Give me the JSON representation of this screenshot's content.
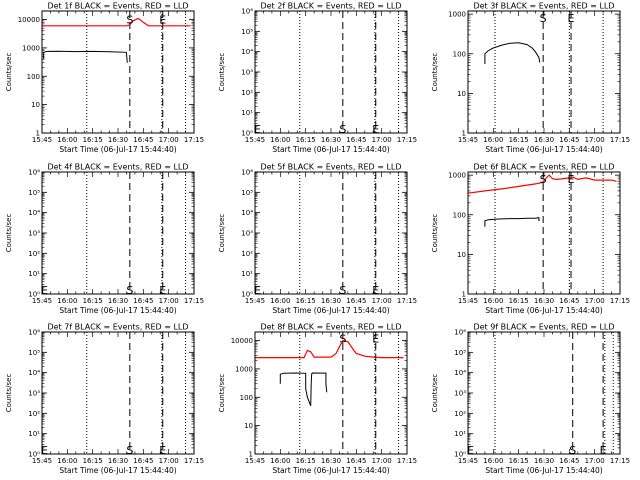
{
  "chart_data": [
    {
      "type": "line",
      "title": "Det 1f BLACK = Events, RED = LLD",
      "xlabel": "Start Time (06-Jul-17 15:44:40)",
      "ylabel": "Counts/sec",
      "xtick_labels": [
        "15:45",
        "16:00",
        "16:15",
        "16:30",
        "16:45",
        "17:00",
        "17:15"
      ],
      "xlim": [
        0,
        90
      ],
      "ylim": [
        1,
        20000
      ],
      "ytick_labels": [
        "1",
        "10",
        "100",
        "1000",
        "10000"
      ],
      "ytick_values": [
        1,
        10,
        100,
        1000,
        10000
      ],
      "dotted_lines_x": [
        26.5,
        71,
        85
      ],
      "dashed_lines_x": [
        52,
        71.5
      ],
      "markers": [
        {
          "label": "S",
          "x": 52,
          "y": 10000
        },
        {
          "label": "E",
          "x": 71.5,
          "y": 10000
        }
      ],
      "series": [
        {
          "name": "Events",
          "color": "#000000",
          "x": [
            1,
            1,
            3,
            10,
            20,
            30,
            40,
            50,
            50.5
          ],
          "y": [
            400,
            700,
            750,
            760,
            740,
            750,
            730,
            700,
            300
          ]
        },
        {
          "name": "LLD",
          "color": "#ff0000",
          "x": [
            0,
            10,
            20,
            30,
            40,
            50,
            52,
            54,
            57,
            60,
            63,
            66,
            70,
            75,
            80,
            88
          ],
          "y": [
            6000,
            6000,
            6000,
            6000,
            6000,
            6000,
            6500,
            9000,
            11000,
            8000,
            6000,
            6000,
            6000,
            6000,
            6000,
            6000
          ]
        }
      ]
    },
    {
      "type": "line",
      "title": "Det 2f BLACK = Events, RED = LLD",
      "xlabel": "Start Time (06-Jul-17 15:44:40)",
      "ylabel": "Counts/sec",
      "xtick_labels": [
        "15:45",
        "16:00",
        "16:15",
        "16:30",
        "16:45",
        "17:00",
        "17:15"
      ],
      "xlim": [
        0,
        90
      ],
      "ylim": [
        1,
        1000000
      ],
      "ytick_labels": [
        "10⁰",
        "10¹",
        "10²",
        "10³",
        "10⁴",
        "10⁵",
        "10⁶"
      ],
      "ytick_values": [
        1,
        10,
        100,
        1000,
        10000,
        100000,
        1000000
      ],
      "dotted_lines_x": [
        26.5,
        71,
        85
      ],
      "dashed_lines_x": [
        52,
        71.5
      ],
      "markers": [
        {
          "label": "E",
          "x": 1.5,
          "y": 1.6
        },
        {
          "label": "S",
          "x": 52,
          "y": 1.6
        },
        {
          "label": "E",
          "x": 71.5,
          "y": 1.6
        }
      ],
      "series": []
    },
    {
      "type": "line",
      "title": "Det 3f BLACK = Events, RED = LLD",
      "xlabel": "Start Time (06-Jul-17 15:44:40)",
      "ylabel": "Counts/sec",
      "xtick_labels": [
        "15:45",
        "16:00",
        "16:15",
        "16:30",
        "16:45",
        "17:00",
        "17:15"
      ],
      "xlim": [
        0,
        90
      ],
      "ylim": [
        1,
        1200
      ],
      "ytick_labels": [
        "1",
        "10",
        "100",
        "1000"
      ],
      "ytick_values": [
        1,
        10,
        100,
        1000
      ],
      "dotted_lines_x": [
        16,
        60,
        80
      ],
      "dashed_lines_x": [
        44.5,
        61
      ],
      "markers": [
        {
          "label": "S",
          "x": 44.5,
          "y": 800
        },
        {
          "label": "E",
          "x": 61,
          "y": 800
        }
      ],
      "series": [
        {
          "name": "Events",
          "color": "#000000",
          "x": [
            10,
            10,
            12,
            15,
            20,
            25,
            30,
            35,
            38,
            40,
            42,
            42.5
          ],
          "y": [
            55,
            100,
            120,
            140,
            165,
            185,
            190,
            170,
            140,
            110,
            80,
            60
          ]
        }
      ]
    },
    {
      "type": "line",
      "title": "Det 4f BLACK = Events, RED = LLD",
      "xlabel": "Start Time (06-Jul-17 15:44:40)",
      "ylabel": "Counts/sec",
      "xtick_labels": [
        "15:45",
        "16:00",
        "16:15",
        "16:30",
        "16:45",
        "17:00",
        "17:15"
      ],
      "xlim": [
        0,
        90
      ],
      "ylim": [
        1,
        1000000
      ],
      "ytick_labels": [
        "10⁰",
        "10¹",
        "10²",
        "10³",
        "10⁴",
        "10⁵",
        "10⁶"
      ],
      "ytick_values": [
        1,
        10,
        100,
        1000,
        10000,
        100000,
        1000000
      ],
      "dotted_lines_x": [
        26.5,
        71,
        85
      ],
      "dashed_lines_x": [
        52,
        71.5
      ],
      "markers": [
        {
          "label": "E",
          "x": 1.5,
          "y": 1.6
        },
        {
          "label": "S",
          "x": 52,
          "y": 1.6
        },
        {
          "label": "E",
          "x": 71.5,
          "y": 1.6
        }
      ],
      "series": []
    },
    {
      "type": "line",
      "title": "Det 5f BLACK = Events, RED = LLD",
      "xlabel": "Start Time (06-Jul-17 15:44:40)",
      "ylabel": "Counts/sec",
      "xtick_labels": [
        "15:45",
        "16:00",
        "16:15",
        "16:30",
        "16:45",
        "17:00",
        "17:15"
      ],
      "xlim": [
        0,
        90
      ],
      "ylim": [
        1,
        1000000
      ],
      "ytick_labels": [
        "10⁰",
        "10¹",
        "10²",
        "10³",
        "10⁴",
        "10⁵",
        "10⁶"
      ],
      "ytick_values": [
        1,
        10,
        100,
        1000,
        10000,
        100000,
        1000000
      ],
      "dotted_lines_x": [
        26.5,
        71,
        85
      ],
      "dashed_lines_x": [
        52,
        71.5
      ],
      "markers": [
        {
          "label": "E",
          "x": 1.5,
          "y": 1.6
        },
        {
          "label": "S",
          "x": 52,
          "y": 1.6
        },
        {
          "label": "E",
          "x": 71.5,
          "y": 1.6
        }
      ],
      "series": []
    },
    {
      "type": "line",
      "title": "Det 6f BLACK = Events, RED = LLD",
      "xlabel": "Start Time (06-Jul-17 15:44:40)",
      "ylabel": "Counts/sec",
      "xtick_labels": [
        "15:45",
        "16:00",
        "16:15",
        "16:30",
        "16:45",
        "17:00",
        "17:15"
      ],
      "xlim": [
        0,
        90
      ],
      "ylim": [
        1,
        1200
      ],
      "ytick_labels": [
        "1",
        "10",
        "100",
        "1000"
      ],
      "ytick_values": [
        1,
        10,
        100,
        1000
      ],
      "dotted_lines_x": [
        16,
        60,
        80
      ],
      "dashed_lines_x": [
        44.5,
        61
      ],
      "markers": [
        {
          "label": "S",
          "x": 44.5,
          "y": 800
        },
        {
          "label": "E",
          "x": 61,
          "y": 800
        }
      ],
      "series": [
        {
          "name": "Events",
          "color": "#000000",
          "x": [
            10,
            10,
            12,
            18,
            25,
            30,
            35,
            40,
            42,
            42,
            42.3
          ],
          "y": [
            50,
            70,
            75,
            78,
            80,
            80,
            82,
            82,
            85,
            70,
            75
          ]
        },
        {
          "name": "LLD",
          "color": "#ff0000",
          "x": [
            0,
            10,
            20,
            30,
            40,
            44,
            46,
            48,
            50,
            52,
            55,
            60,
            62,
            65,
            70,
            75,
            85,
            88
          ],
          "y": [
            350,
            400,
            450,
            520,
            600,
            650,
            820,
            1000,
            820,
            780,
            800,
            850,
            900,
            780,
            850,
            750,
            750,
            700
          ]
        }
      ]
    },
    {
      "type": "line",
      "title": "Det 7f BLACK = Events, RED = LLD",
      "xlabel": "Start Time (06-Jul-17 15:44:40)",
      "ylabel": "Counts/sec",
      "xtick_labels": [
        "15:45",
        "16:00",
        "16:15",
        "16:30",
        "16:45",
        "17:00",
        "17:15"
      ],
      "xlim": [
        0,
        90
      ],
      "ylim": [
        1,
        1000000
      ],
      "ytick_labels": [
        "10⁰",
        "10¹",
        "10²",
        "10³",
        "10⁴",
        "10⁵",
        "10⁶"
      ],
      "ytick_values": [
        1,
        10,
        100,
        1000,
        10000,
        100000,
        1000000
      ],
      "dotted_lines_x": [
        26.5,
        71,
        85
      ],
      "dashed_lines_x": [
        52,
        71.5
      ],
      "markers": [
        {
          "label": "E",
          "x": 1.5,
          "y": 1.6
        },
        {
          "label": "S",
          "x": 52,
          "y": 1.6
        },
        {
          "label": "E",
          "x": 71.5,
          "y": 1.6
        }
      ],
      "series": []
    },
    {
      "type": "line",
      "title": "Det 8f BLACK = Events, RED = LLD",
      "xlabel": "Start Time (06-Jul-17 15:44:40)",
      "ylabel": "Counts/sec",
      "xtick_labels": [
        "15:45",
        "16:00",
        "16:15",
        "16:30",
        "16:45",
        "17:00",
        "17:15"
      ],
      "xlim": [
        0,
        90
      ],
      "ylim": [
        1,
        20000
      ],
      "ytick_labels": [
        "1",
        "10",
        "100",
        "1000",
        "10000"
      ],
      "ytick_values": [
        1,
        10,
        100,
        1000,
        10000
      ],
      "dotted_lines_x": [
        26.5,
        71,
        85
      ],
      "dashed_lines_x": [
        52,
        71.5
      ],
      "markers": [
        {
          "label": "S",
          "x": 52,
          "y": 12000
        },
        {
          "label": "E",
          "x": 71.5,
          "y": 12000
        }
      ],
      "series": [
        {
          "name": "Events",
          "color": "#000000",
          "x": [
            15,
            15,
            17,
            25,
            30,
            30,
            31,
            33,
            33.3,
            33.5,
            33.7,
            34,
            42,
            42,
            42.5
          ],
          "y": [
            300,
            650,
            700,
            720,
            700,
            200,
            100,
            50,
            300,
            600,
            700,
            720,
            710,
            300,
            150
          ]
        },
        {
          "name": "LLD",
          "color": "#ff0000",
          "x": [
            0,
            10,
            20,
            29,
            31,
            33,
            35,
            40,
            45,
            48,
            50,
            52,
            55,
            58,
            60,
            65,
            70,
            75,
            80,
            88
          ],
          "y": [
            2500,
            2500,
            2500,
            2500,
            4500,
            4000,
            2600,
            2600,
            2600,
            3500,
            6000,
            10000,
            9000,
            5000,
            3500,
            2800,
            2600,
            2500,
            2500,
            2500
          ]
        }
      ]
    },
    {
      "type": "line",
      "title": "Det 9f BLACK = Events, RED = LLD",
      "xlabel": "Start Time (06-Jul-17 15:44:40)",
      "ylabel": "Counts/sec",
      "xtick_labels": [
        "15:45",
        "16:00",
        "16:15",
        "16:30",
        "16:45",
        "17:00",
        "17:15"
      ],
      "xlim": [
        0,
        90
      ],
      "ylim": [
        1,
        1000000
      ],
      "ytick_labels": [
        "10⁰",
        "10¹",
        "10²",
        "10³",
        "10⁴",
        "10⁵",
        "10⁶"
      ],
      "ytick_values": [
        1,
        10,
        100,
        1000,
        10000,
        100000,
        1000000
      ],
      "dotted_lines_x": [
        16,
        81,
        86
      ],
      "dashed_lines_x": [
        62,
        80
      ],
      "markers": [
        {
          "label": "E",
          "x": 1.5,
          "y": 1.6
        },
        {
          "label": "S",
          "x": 62,
          "y": 1.6
        },
        {
          "label": "E",
          "x": 80,
          "y": 1.6
        }
      ],
      "series": []
    }
  ]
}
